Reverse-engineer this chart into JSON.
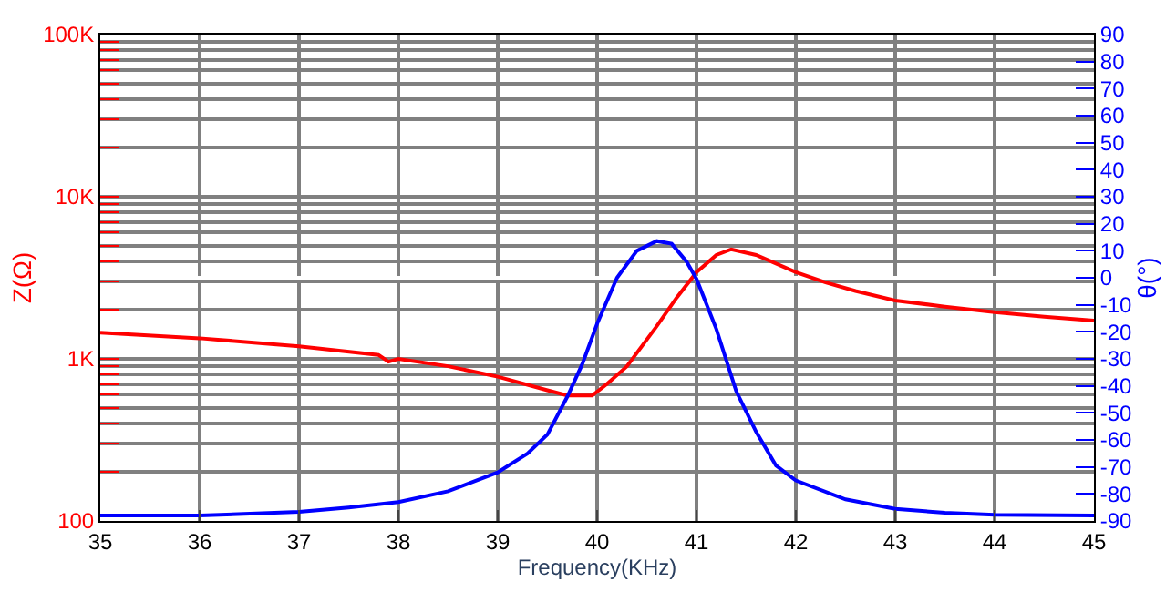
{
  "chart_data": {
    "type": "line",
    "xlabel": "Frequency(KHz)",
    "ylabel": "Z(Ω)",
    "y2label": "θ(°)",
    "log": "y",
    "grid": true,
    "marker": "none",
    "line_style": "solid",
    "xlim": [
      35,
      45
    ],
    "xticks": [
      35,
      36,
      37,
      38,
      39,
      40,
      41,
      42,
      43,
      44,
      45
    ],
    "ylim": [
      100,
      100000
    ],
    "yticks": [
      {
        "value": 100,
        "label": "100"
      },
      {
        "value": 200,
        "label": null
      },
      {
        "value": 300,
        "label": null
      },
      {
        "value": 400,
        "label": null
      },
      {
        "value": 500,
        "label": null
      },
      {
        "value": 600,
        "label": null
      },
      {
        "value": 700,
        "label": null
      },
      {
        "value": 800,
        "label": null
      },
      {
        "value": 900,
        "label": null
      },
      {
        "value": 1000,
        "label": "1K"
      },
      {
        "value": 2000,
        "label": null
      },
      {
        "value": 3000,
        "label": null
      },
      {
        "value": 4000,
        "label": null
      },
      {
        "value": 5000,
        "label": null
      },
      {
        "value": 6000,
        "label": null
      },
      {
        "value": 7000,
        "label": null
      },
      {
        "value": 8000,
        "label": null
      },
      {
        "value": 9000,
        "label": null
      },
      {
        "value": 10000,
        "label": "10K"
      },
      {
        "value": 20000,
        "label": null
      },
      {
        "value": 30000,
        "label": null
      },
      {
        "value": 40000,
        "label": null
      },
      {
        "value": 50000,
        "label": null
      },
      {
        "value": 60000,
        "label": null
      },
      {
        "value": 70000,
        "label": null
      },
      {
        "value": 80000,
        "label": null
      },
      {
        "value": 90000,
        "label": null
      },
      {
        "value": 100000,
        "label": "100K"
      }
    ],
    "y2lim": [
      -90,
      90
    ],
    "y2ticks": [
      -90,
      -80,
      -70,
      -60,
      -50,
      -40,
      -30,
      -20,
      -10,
      0,
      10,
      20,
      30,
      40,
      50,
      60,
      70,
      80,
      90
    ],
    "series": [
      {
        "color": "#ff0000",
        "x": [
          35,
          36,
          37,
          37.8,
          37.9,
          38,
          38.5,
          39,
          39.5,
          39.7,
          39.95,
          40.1,
          40.3,
          40.6,
          40.8,
          41,
          41.2,
          41.35,
          41.6,
          42,
          42.3,
          42.6,
          43,
          43.5,
          44,
          44.5,
          45
        ],
        "values": [
          1450,
          1340,
          1195,
          1057,
          960,
          1000,
          900,
          776,
          640,
          594,
          594,
          700,
          900,
          1590,
          2380,
          3420,
          4370,
          4740,
          4370,
          3420,
          2960,
          2620,
          2290,
          2100,
          1940,
          1820,
          1720
        ]
      },
      {
        "color": "#0000ff",
        "axis": "y2",
        "x": [
          35,
          36,
          37,
          37.5,
          38,
          38.5,
          39,
          39.3,
          39.5,
          39.7,
          39.85,
          40,
          40.2,
          40.4,
          40.6,
          40.75,
          40.9,
          41,
          41.2,
          41.4,
          41.6,
          41.8,
          42,
          42.5,
          43,
          43.5,
          44,
          45
        ],
        "values": [
          -88,
          -88,
          -86.6,
          -85,
          -83,
          -79,
          -72,
          -65,
          -58,
          -44,
          -32,
          -17,
          0,
          10,
          13.6,
          12.6,
          6,
          -0.4,
          -19,
          -42,
          -57,
          -69.5,
          -75,
          -82,
          -85.5,
          -87,
          -87.7,
          -88
        ]
      }
    ]
  }
}
